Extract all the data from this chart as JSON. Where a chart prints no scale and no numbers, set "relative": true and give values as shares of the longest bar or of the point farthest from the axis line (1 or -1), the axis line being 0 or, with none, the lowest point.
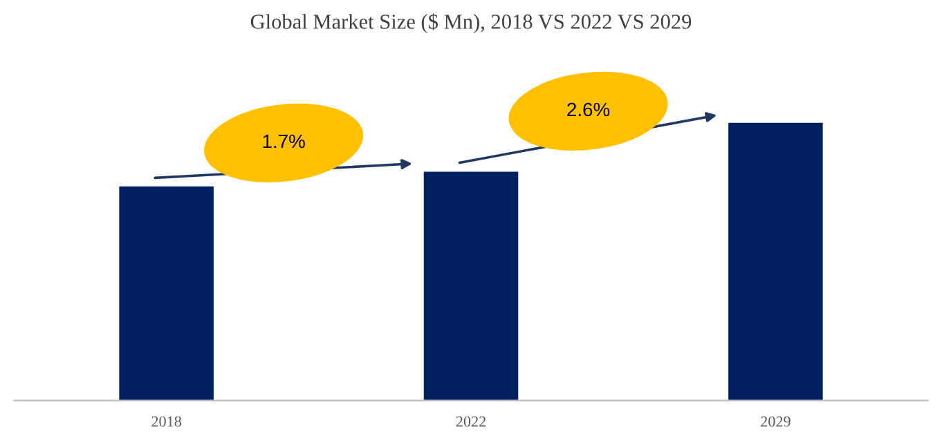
{
  "chart_data": {
    "type": "bar",
    "title": "Global Market Size ($ Mn), 2018 VS 2022 VS 2029",
    "categories": [
      "2018",
      "2022",
      "2029"
    ],
    "values": [
      0.771,
      0.824,
      1
    ],
    "color": "#002060",
    "relative": true,
    "grid": false,
    "legend": false,
    "annotations": [
      "1.7%",
      "2.6%"
    ]
  }
}
